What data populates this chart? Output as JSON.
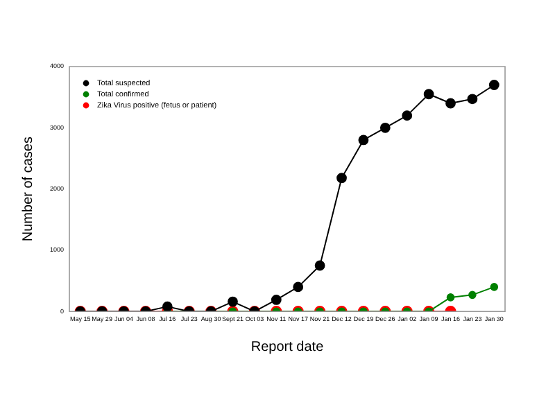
{
  "chart_data": {
    "type": "line",
    "xlabel": "Report date",
    "ylabel": "Number of cases",
    "categories": [
      "May 15",
      "May 29",
      "Jun 04",
      "Jun 08",
      "Jul 16",
      "Jul 23",
      "Aug 30",
      "Sept 21",
      "Oct 03",
      "Nov 11",
      "Nov 17",
      "Nov 21",
      "Dec 12",
      "Dec 19",
      "Dec 26",
      "Jan 02",
      "Jan 09",
      "Jan 16",
      "Jan 23",
      "Jan 30"
    ],
    "series": [
      {
        "name": "Total suspected",
        "color": "#000000",
        "values": [
          0,
          0,
          0,
          0,
          80,
          0,
          0,
          160,
          0,
          190,
          400,
          750,
          2180,
          2800,
          3000,
          3200,
          3550,
          3400,
          3470,
          3700
        ]
      },
      {
        "name": "Total confirmed",
        "color": "#008000",
        "values": [
          null,
          null,
          null,
          null,
          0,
          0,
          0,
          0,
          0,
          0,
          0,
          0,
          0,
          0,
          0,
          0,
          0,
          230,
          270,
          400
        ]
      },
      {
        "name": "Zika Virus positive (fetus or patient)",
        "color": "#ff0000",
        "values": [
          0,
          0,
          0,
          0,
          0,
          0,
          0,
          0,
          0,
          0,
          0,
          0,
          0,
          0,
          0,
          0,
          0,
          0,
          null,
          null
        ]
      }
    ],
    "ylim": [
      0,
      4000
    ],
    "yticks": [
      0,
      1000,
      2000,
      3000,
      4000
    ],
    "grid": false,
    "legend": "top left",
    "marker": "circle"
  }
}
